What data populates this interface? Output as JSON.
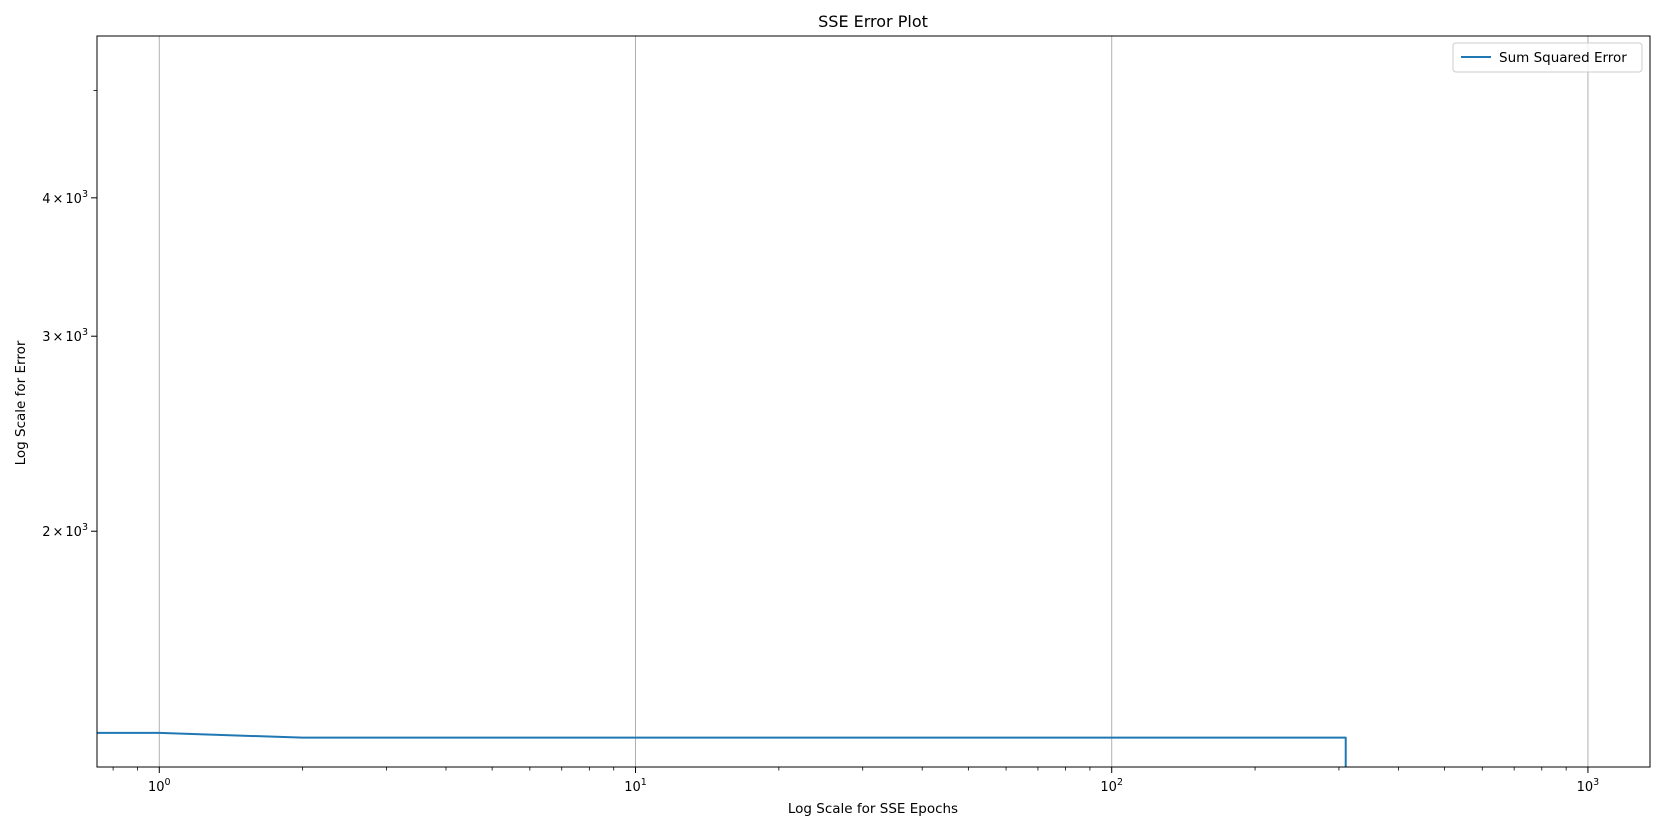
{
  "chart_data": {
    "type": "line",
    "title": "SSE Error Plot",
    "xlabel": "Log Scale for SSE Epochs",
    "ylabel": "Log Scale for Error",
    "xscale": "log",
    "yscale": "log",
    "xlim": [
      0.74,
      1350
    ],
    "ylim": [
      1225,
      5600
    ],
    "grid": "x-major",
    "legend_position": "upper-right",
    "x_ticks": [
      {
        "value": 1,
        "base": "10",
        "exp": "0"
      },
      {
        "value": 10,
        "base": "10",
        "exp": "1"
      },
      {
        "value": 100,
        "base": "10",
        "exp": "2"
      },
      {
        "value": 1000,
        "base": "10",
        "exp": "3"
      }
    ],
    "y_ticks": [
      {
        "value": 2000,
        "mant": "2",
        "base": "10",
        "exp": "3"
      },
      {
        "value": 3000,
        "mant": "3",
        "base": "10",
        "exp": "3"
      },
      {
        "value": 4000,
        "mant": "4",
        "base": "10",
        "exp": "3"
      }
    ],
    "series": [
      {
        "name": "Sum Squared Error",
        "color": "#1f77b4",
        "x": [
          0.74,
          1,
          2,
          10,
          100,
          310,
          310
        ],
        "y": [
          1315,
          1315,
          1302,
          1302,
          1302,
          1302,
          1225
        ]
      }
    ]
  }
}
